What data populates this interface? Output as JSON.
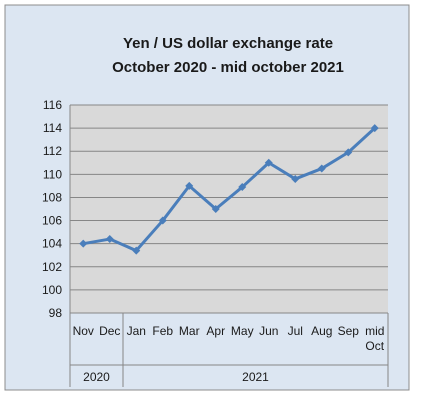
{
  "chart_data": {
    "type": "line",
    "title": "Yen / US dollar exchange rate",
    "subtitle": "October 2020 - mid october 2021",
    "xlabel": "",
    "ylabel": "",
    "ylim": [
      98,
      116
    ],
    "ytick_step": 2,
    "grid": true,
    "legend": "none",
    "categories": [
      "Nov",
      "Dec",
      "Jan",
      "Feb",
      "Mar",
      "Apr",
      "May",
      "Jun",
      "Jul",
      "Aug",
      "Sep",
      "mid Oct"
    ],
    "year_groups": [
      {
        "label": "2020",
        "span": 2
      },
      {
        "label": "2021",
        "span": 10
      }
    ],
    "series": [
      {
        "values": [
          104.0,
          104.4,
          103.4,
          106.0,
          109.0,
          107.0,
          108.9,
          111.0,
          109.6,
          110.5,
          111.9,
          114.0
        ]
      }
    ],
    "colors": {
      "line": "#4a7ebb",
      "plot_background": "#d9d9d9",
      "chart_background": "#dce6f2",
      "gridline": "#868686"
    }
  }
}
